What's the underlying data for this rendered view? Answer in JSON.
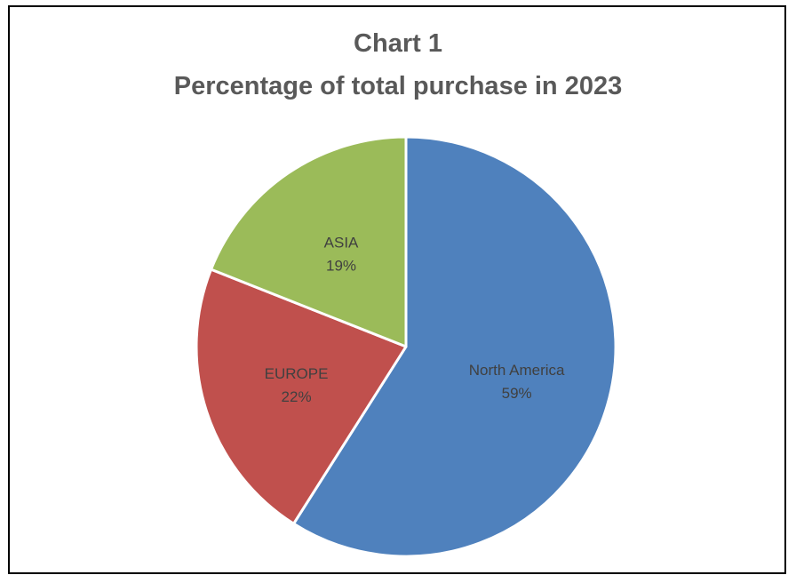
{
  "chart_data": {
    "type": "pie",
    "title": "Chart 1",
    "subtitle": "Percentage of total purchase in  2023",
    "categories": [
      "North America",
      "EUROPE",
      "ASIA"
    ],
    "values": [
      59,
      22,
      19
    ],
    "value_labels": [
      "59%",
      "22%",
      "19%"
    ],
    "colors": [
      "#4f81bd",
      "#c0504d",
      "#9bbb59"
    ],
    "start_angle": "12 o'clock",
    "direction": "clockwise",
    "legend": "none"
  }
}
